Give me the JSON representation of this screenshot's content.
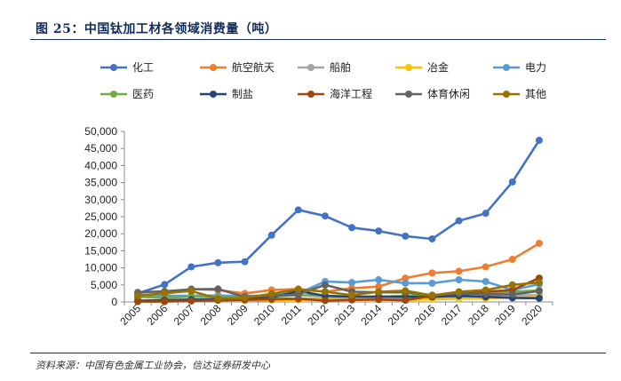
{
  "figure": {
    "title": "图 25：中国钛加工材各领域消费量（吨）",
    "source": "资料来源：中国有色金属工业协会，信达证券研发中心"
  },
  "chart_data": {
    "type": "line",
    "title": "图 25：中国钛加工材各领域消费量（吨）",
    "xlabel": "",
    "ylabel": "",
    "ylim": [
      0,
      50000
    ],
    "yticks": [
      0,
      5000,
      10000,
      15000,
      20000,
      25000,
      30000,
      35000,
      40000,
      45000,
      50000
    ],
    "ytick_labels": [
      "0",
      "5,000",
      "10,000",
      "15,000",
      "20,000",
      "25,000",
      "30,000",
      "35,000",
      "40,000",
      "45,000",
      "50,000"
    ],
    "grid": false,
    "legend_position": "top",
    "categories": [
      "2005",
      "2006",
      "2007",
      "2008",
      "2009",
      "2010",
      "2011",
      "2012",
      "2013",
      "2014",
      "2015",
      "2016",
      "2017",
      "2018",
      "2019",
      "2020"
    ],
    "series": [
      {
        "name": "化工",
        "color": "#4472c4",
        "values": [
          2500,
          5100,
          10300,
          11500,
          11800,
          19600,
          27000,
          25200,
          21800,
          20800,
          19300,
          18500,
          23800,
          26000,
          35200,
          47400
        ]
      },
      {
        "name": "航空航天",
        "color": "#ed7d31",
        "values": [
          1300,
          2300,
          3800,
          3500,
          2500,
          3500,
          3800,
          3000,
          4000,
          4500,
          7000,
          8500,
          9000,
          10300,
          12500,
          17200
        ]
      },
      {
        "name": "船舶",
        "color": "#a5a5a5",
        "values": [
          300,
          200,
          700,
          800,
          900,
          1000,
          1000,
          1100,
          700,
          900,
          800,
          1200,
          1500,
          1600,
          1900,
          2000
        ]
      },
      {
        "name": "冶金",
        "color": "#ffc000",
        "values": [
          200,
          300,
          600,
          500,
          400,
          500,
          600,
          700,
          600,
          700,
          500,
          800,
          900,
          1100,
          1300,
          1700
        ]
      },
      {
        "name": "电力",
        "color": "#5b9bd5",
        "values": [
          2200,
          1800,
          1800,
          1900,
          1700,
          2000,
          2500,
          6000,
          5700,
          6500,
          5500,
          5500,
          6500,
          6000,
          3500,
          5200
        ]
      },
      {
        "name": "医药",
        "color": "#70ad47",
        "values": [
          1500,
          1200,
          1600,
          1500,
          1400,
          1600,
          2000,
          1800,
          1600,
          1500,
          1800,
          2000,
          2200,
          2600,
          3000,
          3400
        ]
      },
      {
        "name": "制盐",
        "color": "#264478",
        "values": [
          400,
          500,
          700,
          800,
          900,
          1300,
          3200,
          1800,
          1500,
          1600,
          1500,
          1500,
          1800,
          1500,
          1200,
          1100
        ]
      },
      {
        "name": "海洋工程",
        "color": "#9e480e",
        "values": [
          100,
          100,
          300,
          500,
          600,
          800,
          900,
          400,
          600,
          700,
          500,
          1800,
          2700,
          3000,
          3500,
          7000
        ]
      },
      {
        "name": "体育休闲",
        "color": "#636363",
        "values": [
          2800,
          3100,
          3700,
          3800,
          1500,
          1800,
          2200,
          5000,
          3000,
          2800,
          2800,
          2000,
          2500,
          2300,
          2200,
          3200
        ]
      },
      {
        "name": "其他",
        "color": "#997300",
        "values": [
          1800,
          2600,
          3200,
          1000,
          1200,
          2400,
          3700,
          3000,
          2000,
          3000,
          3300,
          1900,
          3000,
          3500,
          5000,
          5700
        ]
      }
    ]
  }
}
